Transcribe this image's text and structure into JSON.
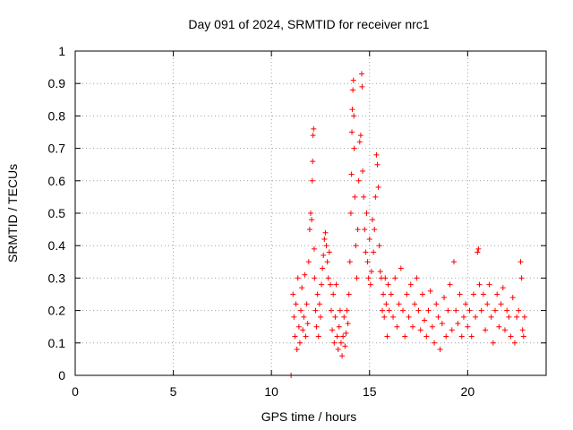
{
  "chart_data": {
    "type": "scatter",
    "title": "Day 091 of 2024, SRMTID for receiver nrc1",
    "xlabel": "GPS time / hours",
    "ylabel": "SRMTID / TECUs",
    "xlim": [
      0,
      24
    ],
    "ylim": [
      0,
      1
    ],
    "xticks": [
      0,
      5,
      10,
      15,
      20
    ],
    "yticks": [
      0,
      0.1,
      0.2,
      0.3,
      0.4,
      0.5,
      0.6,
      0.7,
      0.8,
      0.9,
      1
    ],
    "ytick_labels": [
      "0",
      "0.1",
      "0.2",
      "0.3",
      "0.4",
      "0.5",
      "0.6",
      "0.7",
      "0.8",
      "0.9",
      "1"
    ],
    "grid": true,
    "marker": "plus",
    "color": "#ff0000",
    "series": [
      {
        "name": "SRMTID",
        "points": [
          [
            11.0,
            0.0
          ],
          [
            11.1,
            0.25
          ],
          [
            11.15,
            0.18
          ],
          [
            11.2,
            0.12
          ],
          [
            11.25,
            0.22
          ],
          [
            11.3,
            0.08
          ],
          [
            11.35,
            0.3
          ],
          [
            11.4,
            0.15
          ],
          [
            11.45,
            0.1
          ],
          [
            11.5,
            0.2
          ],
          [
            11.55,
            0.27
          ],
          [
            11.6,
            0.14
          ],
          [
            11.65,
            0.18
          ],
          [
            11.7,
            0.31
          ],
          [
            11.75,
            0.12
          ],
          [
            11.8,
            0.22
          ],
          [
            11.85,
            0.16
          ],
          [
            11.9,
            0.35
          ],
          [
            11.95,
            0.45
          ],
          [
            12.0,
            0.5
          ],
          [
            12.05,
            0.48
          ],
          [
            12.08,
            0.6
          ],
          [
            12.1,
            0.66
          ],
          [
            12.12,
            0.74
          ],
          [
            12.15,
            0.76
          ],
          [
            12.18,
            0.39
          ],
          [
            12.2,
            0.3
          ],
          [
            12.25,
            0.2
          ],
          [
            12.3,
            0.15
          ],
          [
            12.35,
            0.25
          ],
          [
            12.4,
            0.12
          ],
          [
            12.45,
            0.22
          ],
          [
            12.5,
            0.18
          ],
          [
            12.55,
            0.28
          ],
          [
            12.6,
            0.33
          ],
          [
            12.65,
            0.37
          ],
          [
            12.7,
            0.42
          ],
          [
            12.75,
            0.44
          ],
          [
            12.8,
            0.4
          ],
          [
            12.85,
            0.35
          ],
          [
            12.9,
            0.3
          ],
          [
            12.95,
            0.38
          ],
          [
            13.0,
            0.28
          ],
          [
            13.05,
            0.2
          ],
          [
            13.1,
            0.14
          ],
          [
            13.15,
            0.25
          ],
          [
            13.2,
            0.1
          ],
          [
            13.25,
            0.18
          ],
          [
            13.3,
            0.28
          ],
          [
            13.35,
            0.12
          ],
          [
            13.4,
            0.08
          ],
          [
            13.45,
            0.15
          ],
          [
            13.5,
            0.2
          ],
          [
            13.55,
            0.1
          ],
          [
            13.6,
            0.06
          ],
          [
            13.65,
            0.12
          ],
          [
            13.7,
            0.18
          ],
          [
            13.75,
            0.09
          ],
          [
            13.8,
            0.13
          ],
          [
            13.85,
            0.2
          ],
          [
            13.9,
            0.16
          ],
          [
            13.95,
            0.25
          ],
          [
            14.0,
            0.35
          ],
          [
            14.05,
            0.5
          ],
          [
            14.08,
            0.62
          ],
          [
            14.1,
            0.75
          ],
          [
            14.12,
            0.82
          ],
          [
            14.15,
            0.88
          ],
          [
            14.18,
            0.91
          ],
          [
            14.2,
            0.8
          ],
          [
            14.22,
            0.7
          ],
          [
            14.25,
            0.55
          ],
          [
            14.3,
            0.4
          ],
          [
            14.35,
            0.3
          ],
          [
            14.4,
            0.45
          ],
          [
            14.45,
            0.6
          ],
          [
            14.5,
            0.72
          ],
          [
            14.55,
            0.74
          ],
          [
            14.6,
            0.93
          ],
          [
            14.62,
            0.89
          ],
          [
            14.65,
            0.63
          ],
          [
            14.7,
            0.55
          ],
          [
            14.75,
            0.45
          ],
          [
            14.8,
            0.38
          ],
          [
            14.85,
            0.5
          ],
          [
            14.9,
            0.35
          ],
          [
            14.95,
            0.3
          ],
          [
            15.0,
            0.42
          ],
          [
            15.05,
            0.28
          ],
          [
            15.1,
            0.32
          ],
          [
            15.15,
            0.48
          ],
          [
            15.2,
            0.38
          ],
          [
            15.25,
            0.45
          ],
          [
            15.3,
            0.55
          ],
          [
            15.35,
            0.68
          ],
          [
            15.4,
            0.65
          ],
          [
            15.45,
            0.58
          ],
          [
            15.5,
            0.4
          ],
          [
            15.55,
            0.32
          ],
          [
            15.6,
            0.3
          ],
          [
            15.65,
            0.2
          ],
          [
            15.7,
            0.25
          ],
          [
            15.75,
            0.18
          ],
          [
            15.8,
            0.3
          ],
          [
            15.85,
            0.22
          ],
          [
            15.9,
            0.12
          ],
          [
            15.95,
            0.28
          ],
          [
            16.0,
            0.2
          ],
          [
            16.1,
            0.25
          ],
          [
            16.2,
            0.18
          ],
          [
            16.3,
            0.3
          ],
          [
            16.4,
            0.15
          ],
          [
            16.5,
            0.22
          ],
          [
            16.6,
            0.33
          ],
          [
            16.7,
            0.2
          ],
          [
            16.8,
            0.12
          ],
          [
            16.9,
            0.25
          ],
          [
            17.0,
            0.18
          ],
          [
            17.1,
            0.28
          ],
          [
            17.2,
            0.15
          ],
          [
            17.3,
            0.22
          ],
          [
            17.4,
            0.3
          ],
          [
            17.5,
            0.2
          ],
          [
            17.6,
            0.14
          ],
          [
            17.7,
            0.25
          ],
          [
            17.8,
            0.17
          ],
          [
            17.9,
            0.12
          ],
          [
            18.0,
            0.2
          ],
          [
            18.1,
            0.26
          ],
          [
            18.2,
            0.15
          ],
          [
            18.3,
            0.1
          ],
          [
            18.4,
            0.22
          ],
          [
            18.5,
            0.18
          ],
          [
            18.6,
            0.08
          ],
          [
            18.7,
            0.16
          ],
          [
            18.8,
            0.24
          ],
          [
            18.9,
            0.12
          ],
          [
            19.0,
            0.2
          ],
          [
            19.1,
            0.28
          ],
          [
            19.2,
            0.14
          ],
          [
            19.3,
            0.35
          ],
          [
            19.4,
            0.2
          ],
          [
            19.5,
            0.16
          ],
          [
            19.6,
            0.25
          ],
          [
            19.7,
            0.12
          ],
          [
            19.8,
            0.18
          ],
          [
            19.9,
            0.22
          ],
          [
            20.0,
            0.15
          ],
          [
            20.1,
            0.2
          ],
          [
            20.2,
            0.12
          ],
          [
            20.3,
            0.25
          ],
          [
            20.4,
            0.18
          ],
          [
            20.5,
            0.38
          ],
          [
            20.55,
            0.39
          ],
          [
            20.6,
            0.28
          ],
          [
            20.7,
            0.2
          ],
          [
            20.8,
            0.25
          ],
          [
            20.9,
            0.14
          ],
          [
            21.0,
            0.22
          ],
          [
            21.1,
            0.28
          ],
          [
            21.2,
            0.18
          ],
          [
            21.3,
            0.1
          ],
          [
            21.4,
            0.2
          ],
          [
            21.5,
            0.25
          ],
          [
            21.6,
            0.15
          ],
          [
            21.7,
            0.22
          ],
          [
            21.8,
            0.27
          ],
          [
            21.9,
            0.14
          ],
          [
            22.0,
            0.2
          ],
          [
            22.1,
            0.18
          ],
          [
            22.2,
            0.12
          ],
          [
            22.3,
            0.24
          ],
          [
            22.4,
            0.1
          ],
          [
            22.5,
            0.18
          ],
          [
            22.6,
            0.2
          ],
          [
            22.7,
            0.35
          ],
          [
            22.75,
            0.3
          ],
          [
            22.8,
            0.14
          ],
          [
            22.85,
            0.12
          ],
          [
            22.9,
            0.18
          ]
        ]
      }
    ]
  }
}
